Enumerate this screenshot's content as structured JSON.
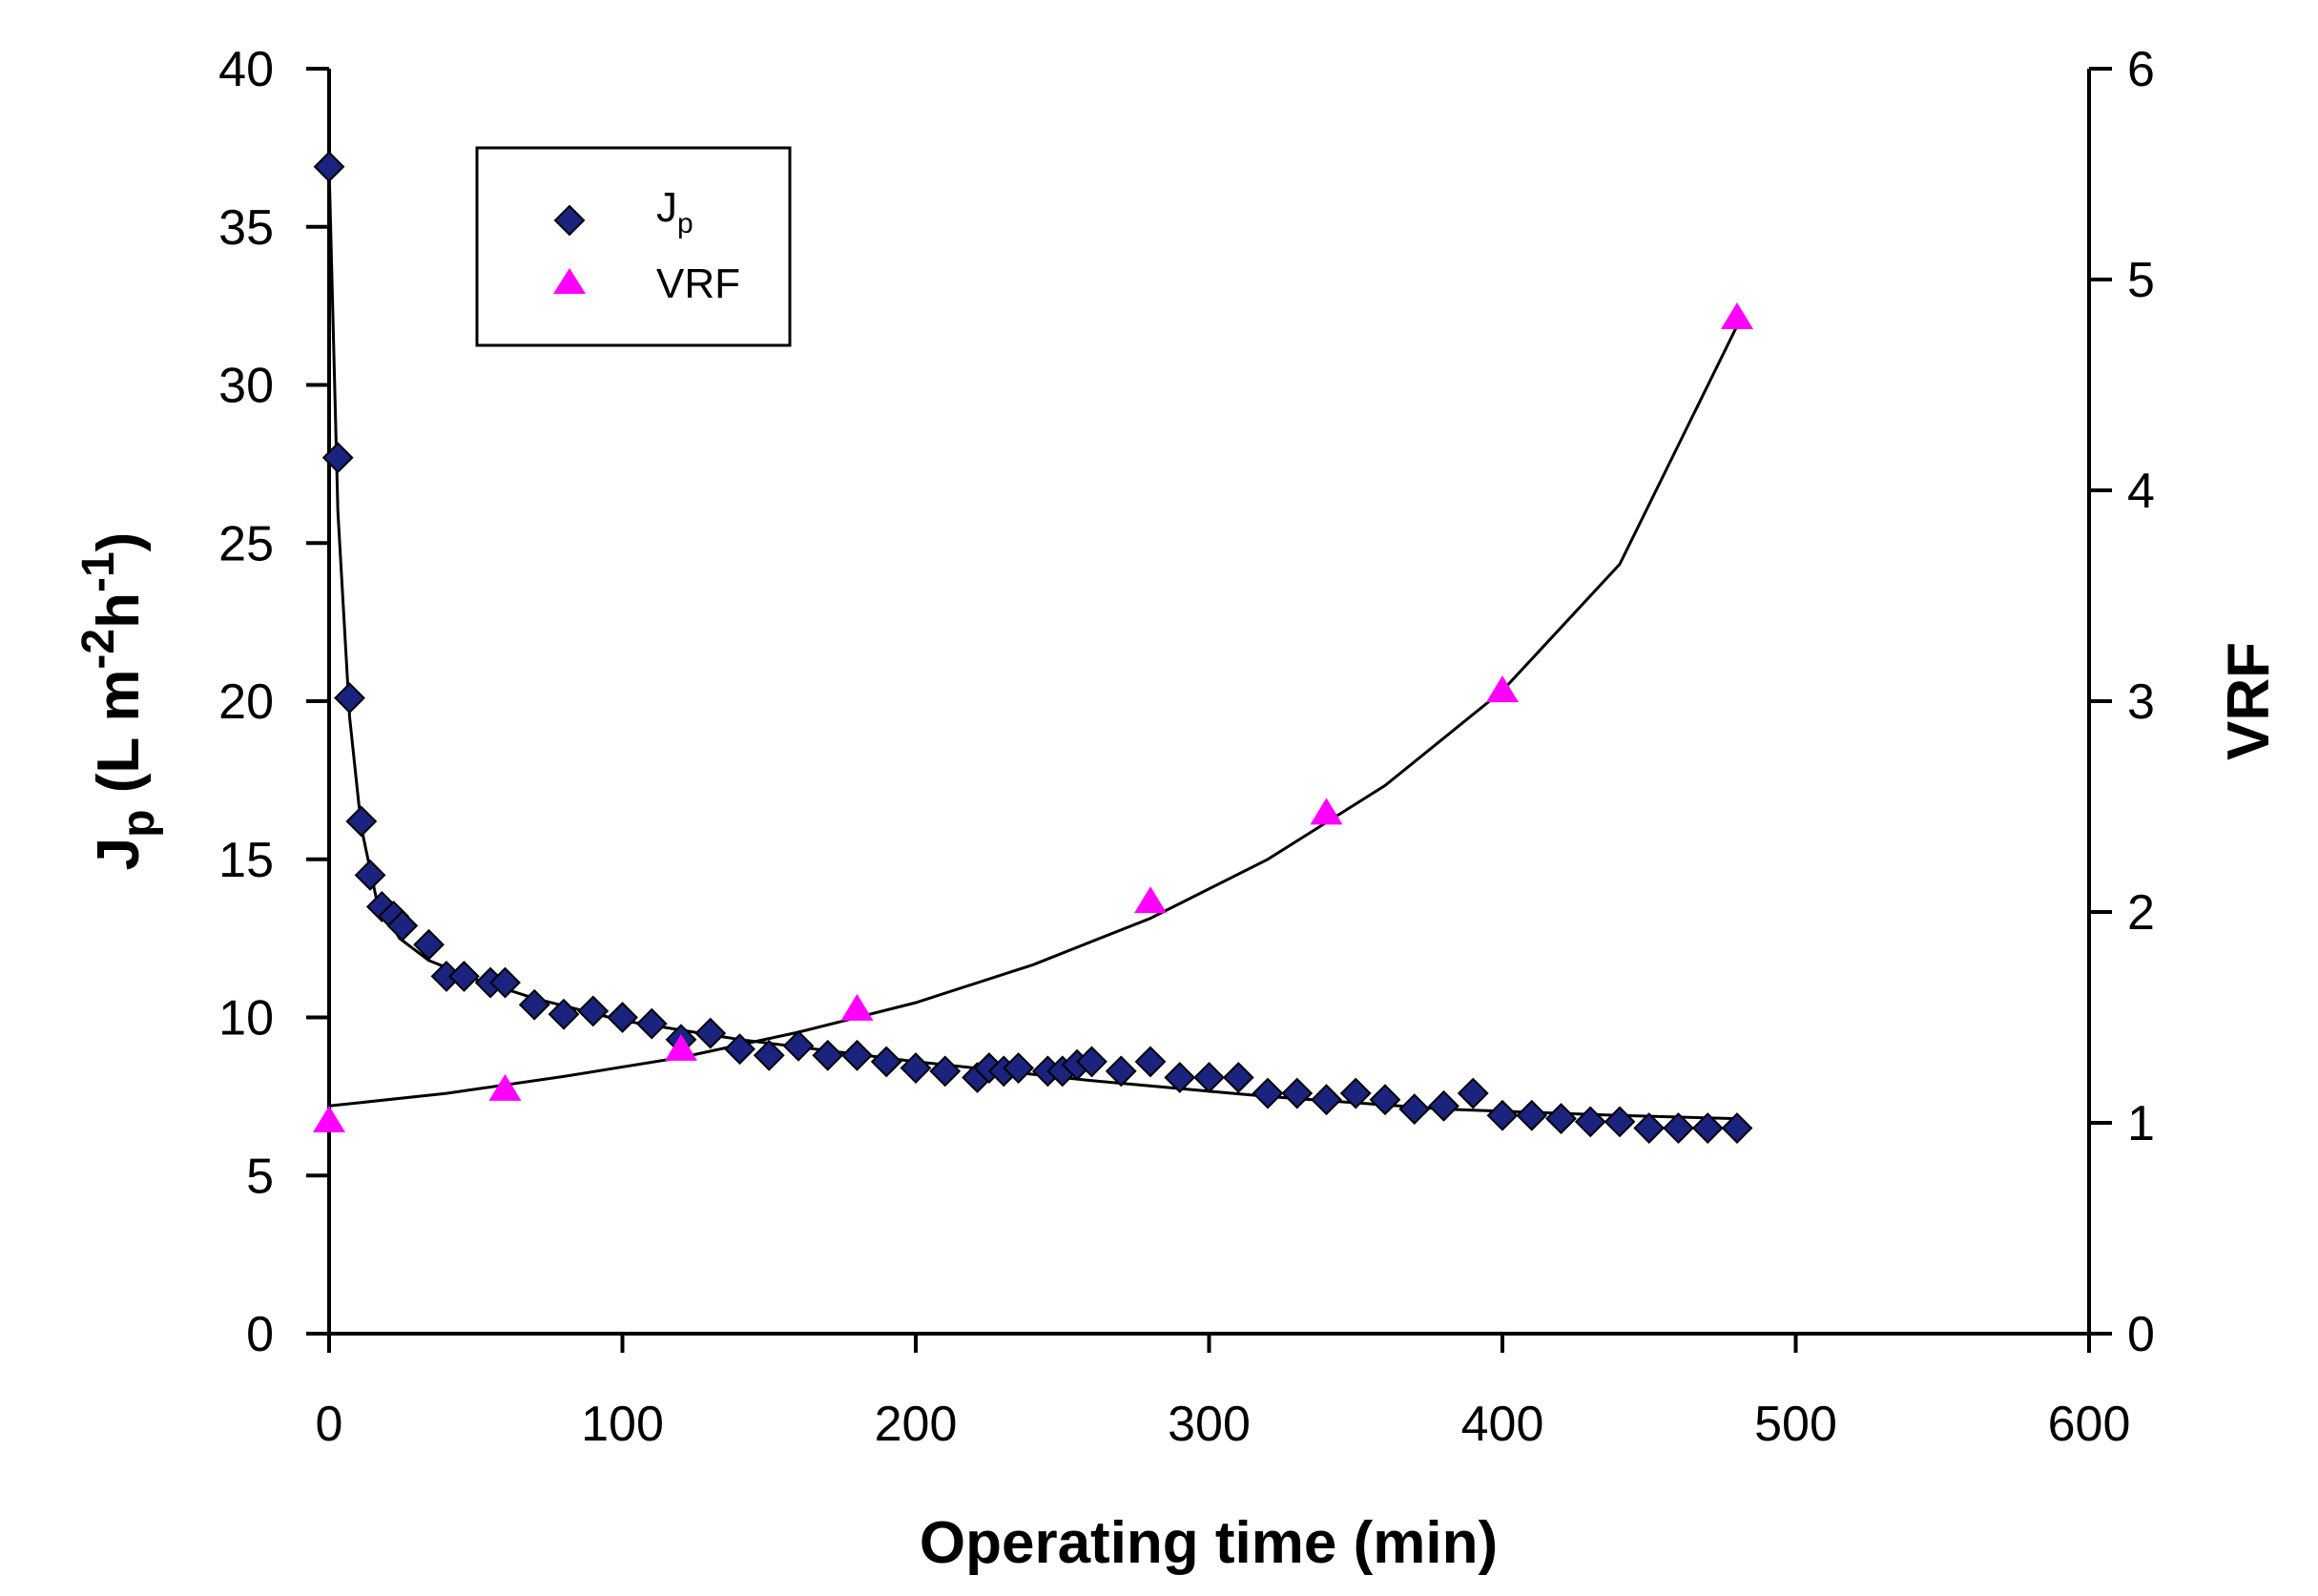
{
  "chart_data": {
    "type": "scatter",
    "xlabel": "Operating time (min)",
    "ylabel": {
      "main": "J",
      "sub": "p",
      "rest": " (L m",
      "sup1": "-2",
      "mid": "h",
      "sup2": "-1",
      "close": ")"
    },
    "y2label": "VRF",
    "xlim": [
      0,
      600
    ],
    "ylim": [
      0,
      40
    ],
    "y2lim": [
      0,
      6
    ],
    "x_ticks": [
      "0",
      "100",
      "200",
      "300",
      "400",
      "500",
      "600"
    ],
    "y_ticks": [
      "0",
      "5",
      "10",
      "15",
      "20",
      "25",
      "30",
      "35",
      "40"
    ],
    "y2_ticks": [
      "0",
      "1",
      "2",
      "3",
      "4",
      "5",
      "6"
    ],
    "grid": false,
    "legend_position": "top-left",
    "legend": [
      {
        "label": "J",
        "sub": "p",
        "marker": "diamond",
        "color": "#1a237e"
      },
      {
        "label": "VRF",
        "sub": "",
        "marker": "triangle",
        "color": "#ff00ff"
      }
    ],
    "series": [
      {
        "name": "Jp",
        "axis": "left",
        "marker": "diamond",
        "color": "#1a237e",
        "x": [
          0,
          3,
          7,
          11,
          14,
          18,
          22,
          25,
          34,
          40,
          46,
          55,
          60,
          70,
          80,
          90,
          100,
          110,
          120,
          130,
          140,
          150,
          160,
          170,
          180,
          190,
          200,
          210,
          221,
          225,
          230,
          235,
          245,
          250,
          255,
          260,
          270,
          280,
          290,
          300,
          310,
          320,
          330,
          340,
          350,
          360,
          370,
          380,
          390,
          400,
          410,
          420,
          430,
          440,
          450,
          460,
          470,
          480
        ],
        "y": [
          36.9,
          27.7,
          20.1,
          16.2,
          14.5,
          13.5,
          13.2,
          12.9,
          12.3,
          11.3,
          11.3,
          11.1,
          11.1,
          10.4,
          10.1,
          10.2,
          10.0,
          9.8,
          9.3,
          9.5,
          9.0,
          8.8,
          9.1,
          8.8,
          8.8,
          8.6,
          8.4,
          8.3,
          8.1,
          8.4,
          8.3,
          8.4,
          8.3,
          8.3,
          8.5,
          8.6,
          8.3,
          8.6,
          8.1,
          8.1,
          8.1,
          7.6,
          7.6,
          7.4,
          7.6,
          7.4,
          7.1,
          7.2,
          7.6,
          6.9,
          6.9,
          6.8,
          6.7,
          6.7,
          6.5,
          6.5,
          6.5,
          6.5
        ]
      },
      {
        "name": "VRF",
        "axis": "right",
        "marker": "triangle",
        "color": "#ff00ff",
        "x": [
          0,
          60,
          120,
          180,
          280,
          340,
          400,
          480
        ],
        "y": [
          1.0,
          1.15,
          1.34,
          1.53,
          2.04,
          2.46,
          3.04,
          4.81
        ]
      }
    ],
    "fit_lines": [
      {
        "axis": "left",
        "x": [
          0,
          3,
          7,
          11,
          16,
          24,
          34,
          50,
          70,
          100,
          140,
          200,
          260,
          320,
          380,
          440,
          480
        ],
        "y": [
          36.9,
          26.0,
          19.5,
          16.0,
          13.8,
          12.5,
          11.8,
          11.2,
          10.6,
          9.9,
          9.3,
          8.6,
          8.0,
          7.5,
          7.1,
          6.9,
          6.8
        ]
      },
      {
        "axis": "right",
        "x": [
          0,
          40,
          80,
          120,
          160,
          200,
          240,
          280,
          320,
          360,
          400,
          440,
          480
        ],
        "y": [
          1.08,
          1.14,
          1.22,
          1.31,
          1.43,
          1.57,
          1.75,
          1.97,
          2.25,
          2.6,
          3.05,
          3.65,
          4.78
        ]
      }
    ]
  }
}
